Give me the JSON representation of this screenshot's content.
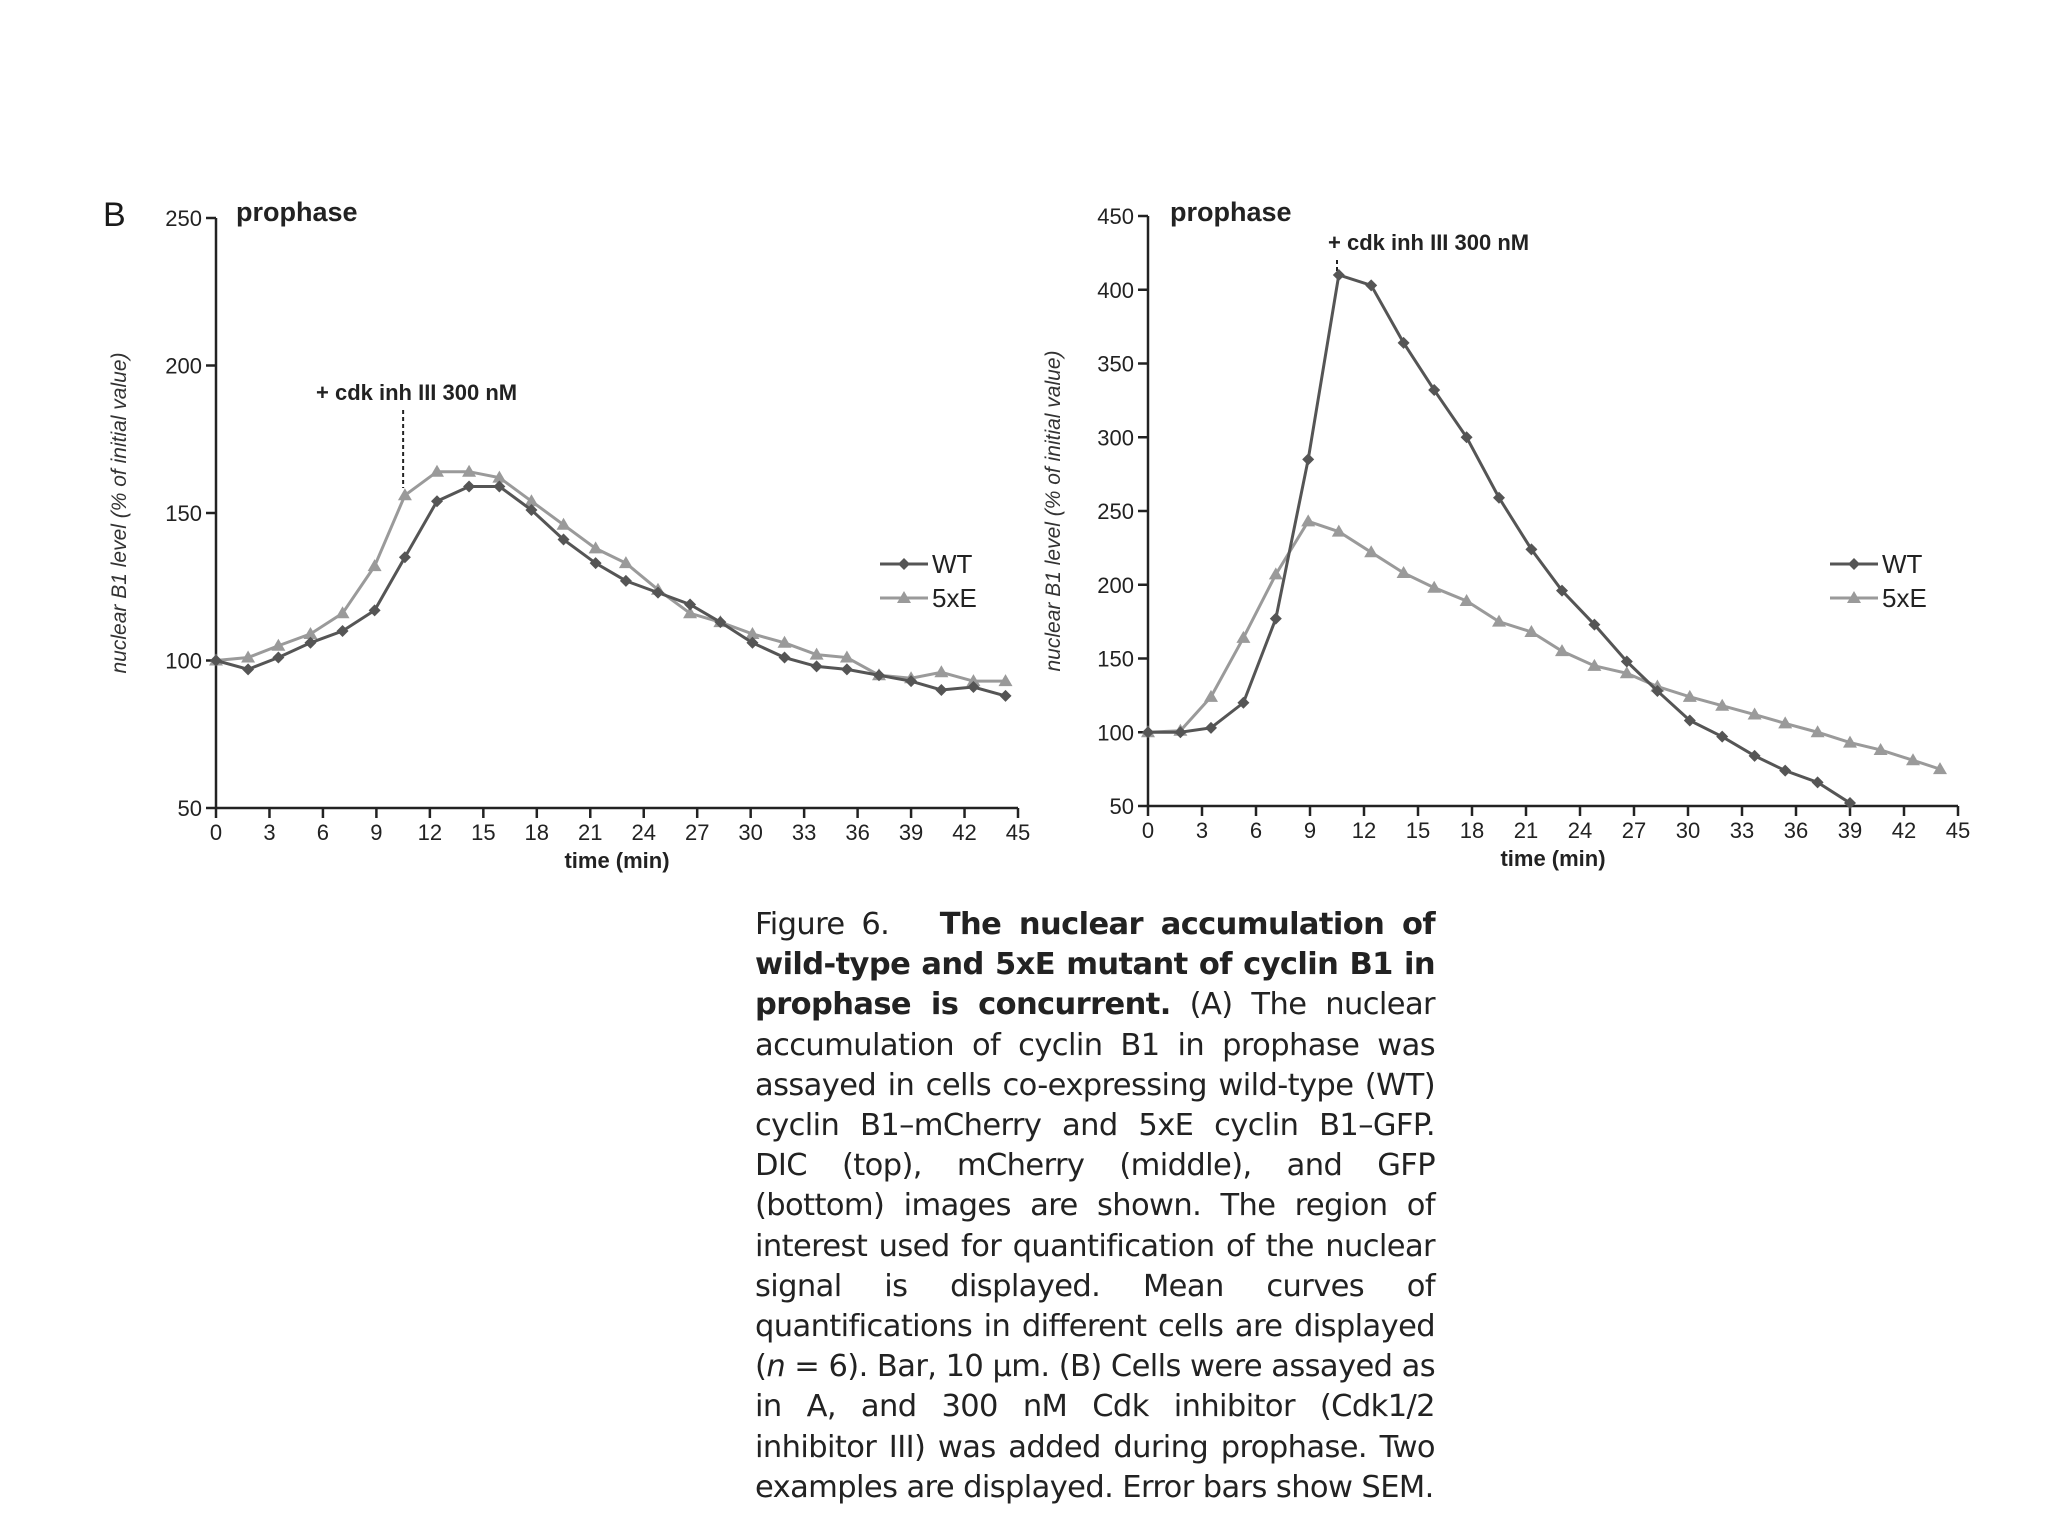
{
  "figure": {
    "panel_label": "B",
    "caption": {
      "label": "Figure 6.",
      "title": "The nuclear accumulation of wild-type and 5xE mutant of cyclin B1 in prophase is concurrent.",
      "body_1": "(A) The nuclear accumulation of cyclin B1 in prophase was assayed in cells co-expressing wild-type (WT) cyclin B1–mCherry and 5xE cyclin B1–GFP. DIC (top), mCherry (middle), and GFP (bottom) images are shown. The region of interest used for quantification of the nuclear signal is displayed. Mean curves of quantifications in different cells are displayed (",
      "n": "n",
      "body_2": " = 6). Bar, 10 μm. (B) Cells were assayed as in A, and 300 nM Cdk inhibitor (Cdk1/2 inhibitor III) was added during prophase. Two examples are displayed. Error bars show SEM."
    }
  },
  "chart_data": [
    {
      "type": "line",
      "title": "prophase",
      "annotation": {
        "text": "+ cdk inh III 300 nM",
        "x": 10.5
      },
      "xlabel": "time (min)",
      "ylabel": "nuclear B1 level (% of initial value)",
      "xlim": [
        0,
        45
      ],
      "ylim": [
        50,
        250
      ],
      "xticks": [
        0,
        3,
        6,
        9,
        12,
        15,
        18,
        21,
        24,
        27,
        30,
        33,
        36,
        39,
        42,
        45
      ],
      "yticks": [
        50,
        100,
        150,
        200,
        250
      ],
      "legend_position": "right",
      "series": [
        {
          "name": "WT",
          "color": "#555555",
          "marker": "diamond",
          "x": [
            0,
            1.8,
            3.5,
            5.3,
            7.1,
            8.9,
            10.6,
            12.4,
            14.2,
            15.9,
            17.7,
            19.5,
            21.3,
            23.0,
            24.8,
            26.6,
            28.3,
            30.1,
            31.9,
            33.7,
            35.4,
            37.2,
            39.0,
            40.7,
            42.5,
            44.3
          ],
          "y": [
            100,
            97,
            101,
            106,
            110,
            117,
            135,
            154,
            159,
            159,
            151,
            141,
            133,
            127,
            123,
            119,
            113,
            106,
            101,
            98,
            97,
            95,
            93,
            90,
            91,
            88
          ]
        },
        {
          "name": "5xE",
          "color": "#9a9a9a",
          "marker": "triangle",
          "x": [
            0,
            1.8,
            3.5,
            5.3,
            7.1,
            8.9,
            10.6,
            12.4,
            14.2,
            15.9,
            17.7,
            19.5,
            21.3,
            23.0,
            24.8,
            26.6,
            28.3,
            30.1,
            31.9,
            33.7,
            35.4,
            37.2,
            39.0,
            40.7,
            42.5,
            44.3
          ],
          "y": [
            100,
            101,
            105,
            109,
            116,
            132,
            156,
            164,
            164,
            162,
            154,
            146,
            138,
            133,
            124,
            116,
            113,
            109,
            106,
            102,
            101,
            95,
            94,
            96,
            93,
            93
          ]
        }
      ]
    },
    {
      "type": "line",
      "title": "prophase",
      "annotation": {
        "text": "+ cdk inh III 300 nM",
        "x": 10.5
      },
      "xlabel": "time (min)",
      "ylabel": "nuclear B1 level (% of initial value)",
      "xlim": [
        0,
        45
      ],
      "ylim": [
        50,
        450
      ],
      "xticks": [
        0,
        3,
        6,
        9,
        12,
        15,
        18,
        21,
        24,
        27,
        30,
        33,
        36,
        39,
        42,
        45
      ],
      "yticks": [
        50,
        100,
        150,
        200,
        250,
        300,
        350,
        400,
        450
      ],
      "legend_position": "right",
      "series": [
        {
          "name": "WT",
          "color": "#555555",
          "marker": "diamond",
          "x": [
            0,
            1.8,
            3.5,
            5.3,
            7.1,
            8.9,
            10.6,
            12.4,
            14.2,
            15.9,
            17.7,
            19.5,
            21.3,
            23.0,
            24.8,
            26.6,
            28.3,
            30.1,
            31.9,
            33.7,
            35.4,
            37.2,
            39.0
          ],
          "y": [
            100,
            100,
            103,
            120,
            177,
            285,
            410,
            403,
            364,
            332,
            300,
            259,
            224,
            196,
            173,
            148,
            128,
            108,
            97,
            84,
            74,
            66,
            52
          ]
        },
        {
          "name": "5xE",
          "color": "#9a9a9a",
          "marker": "triangle",
          "x": [
            0,
            1.8,
            3.5,
            5.3,
            7.1,
            8.9,
            10.6,
            12.4,
            14.2,
            15.9,
            17.7,
            19.5,
            21.3,
            23.0,
            24.8,
            26.6,
            28.3,
            30.1,
            31.9,
            33.7,
            35.4,
            37.2,
            39.0,
            40.7,
            42.5,
            44.0
          ],
          "y": [
            100,
            101,
            124,
            164,
            207,
            243,
            236,
            222,
            208,
            198,
            189,
            175,
            168,
            155,
            145,
            140,
            131,
            124,
            118,
            112,
            106,
            100,
            93,
            88,
            81,
            75
          ]
        }
      ]
    }
  ]
}
